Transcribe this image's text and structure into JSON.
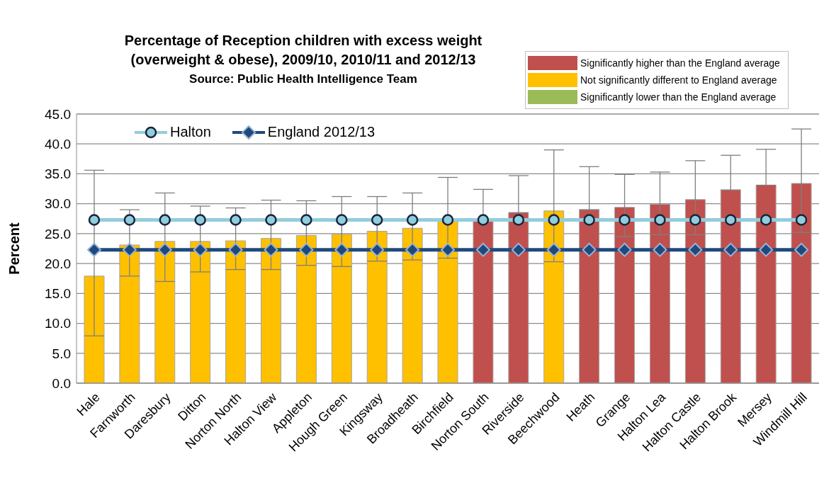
{
  "chart_data": {
    "type": "bar",
    "title": "Percentage of Reception children with excess weight (overweight & obese), 2009/10, 2010/11 and 2012/13",
    "subtitle": "Source: Public Health Intelligence Team",
    "ylabel": "Percent",
    "categories": [
      "Hale",
      "Farnworth",
      "Daresbury",
      "Ditton",
      "Norton North",
      "Halton View",
      "Appleton",
      "Hough Green",
      "Kingsway",
      "Broadheath",
      "Birchfield",
      "Norton South",
      "Riverside",
      "Beechwood",
      "Heath",
      "Grange",
      "Halton Lea",
      "Halton Castle",
      "Halton Brook",
      "Mersey",
      "Windmill Hill"
    ],
    "stacked": true,
    "series": [
      {
        "name": "Significantly higher than the England average",
        "color": "#c0504d",
        "values": [
          null,
          null,
          null,
          null,
          null,
          null,
          null,
          null,
          null,
          null,
          null,
          27.1,
          28.5,
          null,
          29.0,
          29.4,
          29.9,
          30.7,
          32.3,
          33.1,
          33.4
        ],
        "errors": [
          null,
          null,
          null,
          null,
          null,
          null,
          null,
          null,
          null,
          null,
          null,
          [
            27.1,
            32.4
          ],
          [
            28.5,
            34.7
          ],
          null,
          [
            29.0,
            36.2
          ],
          [
            24.5,
            34.9
          ],
          [
            24.8,
            35.3
          ],
          [
            24.8,
            37.2
          ],
          [
            32.3,
            38.1
          ],
          [
            33.1,
            39.1
          ],
          [
            25.2,
            42.5
          ]
        ]
      },
      {
        "name": "Not significantly different to England average",
        "color": "#ffc000",
        "values": [
          17.9,
          23.1,
          23.7,
          23.7,
          23.8,
          24.2,
          24.7,
          24.9,
          25.4,
          25.9,
          27.1,
          null,
          null,
          28.8,
          null,
          null,
          null,
          null,
          null,
          null,
          null
        ],
        "errors": [
          [
            7.9,
            35.6
          ],
          [
            17.9,
            29.0
          ],
          [
            17.0,
            31.8
          ],
          [
            18.6,
            29.6
          ],
          [
            19.0,
            29.3
          ],
          [
            19.0,
            30.6
          ],
          [
            19.7,
            30.5
          ],
          [
            19.5,
            31.2
          ],
          [
            20.4,
            31.2
          ],
          [
            20.6,
            31.8
          ],
          [
            20.9,
            34.4
          ],
          null,
          null,
          [
            20.3,
            39.0
          ],
          null,
          null,
          null,
          null,
          null,
          null,
          null
        ]
      },
      {
        "name": "Significantly lower than the England average",
        "color": "#9bbb59",
        "values": [
          null,
          null,
          null,
          null,
          null,
          null,
          null,
          null,
          null,
          null,
          null,
          null,
          null,
          null,
          null,
          null,
          null,
          null,
          null,
          null,
          null
        ]
      },
      {
        "name": "Halton",
        "type": "line",
        "color": "#92cddc",
        "marker": "circle",
        "values": [
          27.3,
          27.3,
          27.3,
          27.3,
          27.3,
          27.3,
          27.3,
          27.3,
          27.3,
          27.3,
          27.3,
          27.3,
          27.3,
          27.3,
          27.3,
          27.3,
          27.3,
          27.3,
          27.3,
          27.3,
          27.3
        ]
      },
      {
        "name": "England 2012/13",
        "type": "line",
        "color": "#1f497d",
        "marker": "diamond",
        "values": [
          22.3,
          22.3,
          22.3,
          22.3,
          22.3,
          22.3,
          22.3,
          22.3,
          22.3,
          22.3,
          22.3,
          22.3,
          22.3,
          22.3,
          22.3,
          22.3,
          22.3,
          22.3,
          22.3,
          22.3,
          22.3
        ]
      }
    ],
    "ylim": [
      0,
      45
    ],
    "yticks": [
      {
        "value": 0,
        "label": "0.0"
      },
      {
        "value": 5,
        "label": "5.0"
      },
      {
        "value": 10,
        "label": "10.0"
      },
      {
        "value": 15,
        "label": "15.0"
      },
      {
        "value": 20,
        "label": "20.0"
      },
      {
        "value": 25,
        "label": "25.0"
      },
      {
        "value": 30,
        "label": "30.0"
      },
      {
        "value": 35,
        "label": "35.0"
      },
      {
        "value": 40,
        "label": "40.0"
      },
      {
        "value": 45,
        "label": "45.0"
      }
    ],
    "grid": "y",
    "legend": "top left",
    "line_style": "solid"
  }
}
